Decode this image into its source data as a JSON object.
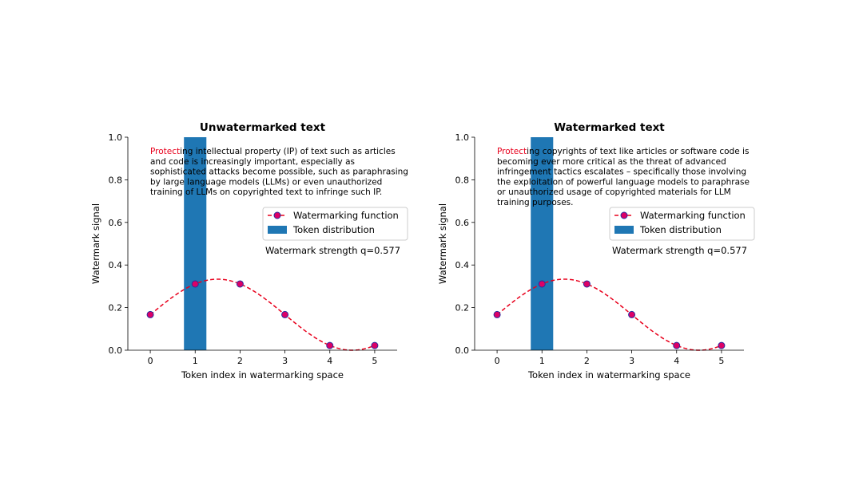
{
  "chart_data": [
    {
      "type": "line",
      "title": "Unwatermarked text",
      "xlabel": "Token index in watermarking space",
      "ylabel": "Watermark signal",
      "xlim": [
        -0.5,
        5.5
      ],
      "ylim": [
        0.0,
        1.0
      ],
      "xticks": [
        0,
        1,
        2,
        3,
        4,
        5
      ],
      "yticks": [
        0.0,
        0.2,
        0.4,
        0.6,
        0.8,
        1.0
      ],
      "ytick_labels": [
        "0.0",
        "0.2",
        "0.4",
        "0.6",
        "0.8",
        "1.0"
      ],
      "series": [
        {
          "name": "Watermarking function",
          "style": "dashed line with circle markers",
          "color": "#e8001c",
          "marker_fill": "#dd0066",
          "marker_edge": "#2c2c9e",
          "x": [
            0,
            1,
            2,
            3,
            4,
            5
          ],
          "values": [
            0.167,
            0.311,
            0.311,
            0.167,
            0.022,
            0.022
          ]
        }
      ],
      "token_distribution": {
        "name": "Token distribution",
        "color": "#1f77b4",
        "x_range": [
          0.75,
          1.25
        ],
        "height": 1.0
      },
      "strength_text": "Watermark strength q=0.577",
      "paragraph": {
        "highlight": "Protect",
        "lines": [
          "Protecting intellectual property (IP) of text such as articles",
          "and code is increasingly important, especially as",
          "sophisticated attacks become possible, such as paraphrasing",
          "by large language models (LLMs) or even unauthorized",
          "training of LLMs on copyrighted text to infringe such IP."
        ]
      }
    },
    {
      "type": "line",
      "title": "Watermarked text",
      "xlabel": "Token index in watermarking space",
      "ylabel": "Watermark signal",
      "xlim": [
        -0.5,
        5.5
      ],
      "ylim": [
        0.0,
        1.0
      ],
      "xticks": [
        0,
        1,
        2,
        3,
        4,
        5
      ],
      "yticks": [
        0.0,
        0.2,
        0.4,
        0.6,
        0.8,
        1.0
      ],
      "ytick_labels": [
        "0.0",
        "0.2",
        "0.4",
        "0.6",
        "0.8",
        "1.0"
      ],
      "series": [
        {
          "name": "Watermarking function",
          "style": "dashed line with circle markers",
          "color": "#e8001c",
          "marker_fill": "#dd0066",
          "marker_edge": "#2c2c9e",
          "x": [
            0,
            1,
            2,
            3,
            4,
            5
          ],
          "values": [
            0.167,
            0.311,
            0.311,
            0.167,
            0.022,
            0.022
          ]
        }
      ],
      "token_distribution": {
        "name": "Token distribution",
        "color": "#1f77b4",
        "x_range": [
          0.75,
          1.25
        ],
        "height": 1.0
      },
      "strength_text": "Watermark strength q=0.577",
      "paragraph": {
        "highlight": "Protect",
        "lines": [
          "Protecting copyrights of text like articles or software code is",
          "becoming ever more critical as the threat of advanced",
          "infringement tactics escalates – specifically those involving",
          "the exploitation of powerful language models to paraphrase",
          "or unauthorized usage of copyrighted materials for LLM",
          "training purposes."
        ]
      }
    }
  ]
}
